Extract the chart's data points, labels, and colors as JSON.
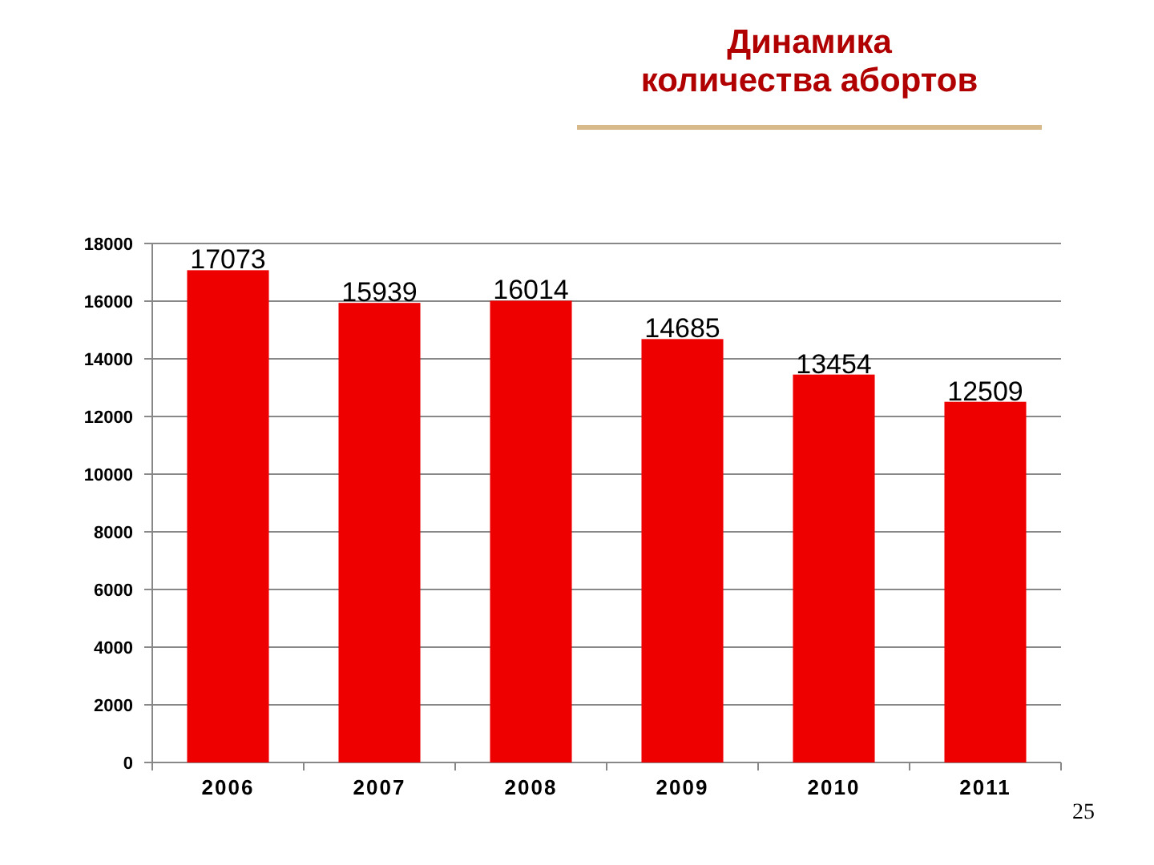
{
  "chart_data": {
    "type": "bar",
    "title": "Динамика\nколичества абортов",
    "categories": [
      "2006",
      "2007",
      "2008",
      "2009",
      "2010",
      "2011"
    ],
    "values": [
      17073,
      15939,
      16014,
      14685,
      13454,
      12509
    ],
    "color": "#ee0000",
    "ylim": [
      0,
      18000
    ],
    "yticks": [
      0,
      2000,
      4000,
      6000,
      8000,
      10000,
      12000,
      14000,
      16000,
      18000
    ],
    "grid": "y",
    "data_labels": true,
    "annotations": [
      "25"
    ]
  }
}
